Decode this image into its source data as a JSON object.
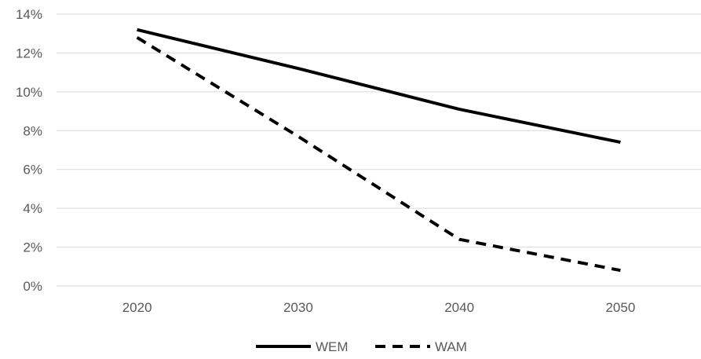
{
  "chart_data": {
    "type": "line",
    "title": "",
    "xlabel": "",
    "ylabel": "",
    "x": [
      "2020",
      "2030",
      "2040",
      "2050"
    ],
    "ylim": [
      0,
      14
    ],
    "y_ticks": [
      0,
      2,
      4,
      6,
      8,
      10,
      12,
      14
    ],
    "y_tick_labels": [
      "0%",
      "2%",
      "4%",
      "6%",
      "8%",
      "10%",
      "12%",
      "14%"
    ],
    "grid": "horizontal",
    "legend_position": "bottom-center",
    "series": [
      {
        "name": "WEM",
        "values": [
          13.2,
          11.2,
          9.1,
          7.4
        ],
        "color": "#000000",
        "style": "solid"
      },
      {
        "name": "WAM",
        "values": [
          12.8,
          7.7,
          2.4,
          0.8
        ],
        "color": "#000000",
        "style": "dashed"
      }
    ]
  }
}
